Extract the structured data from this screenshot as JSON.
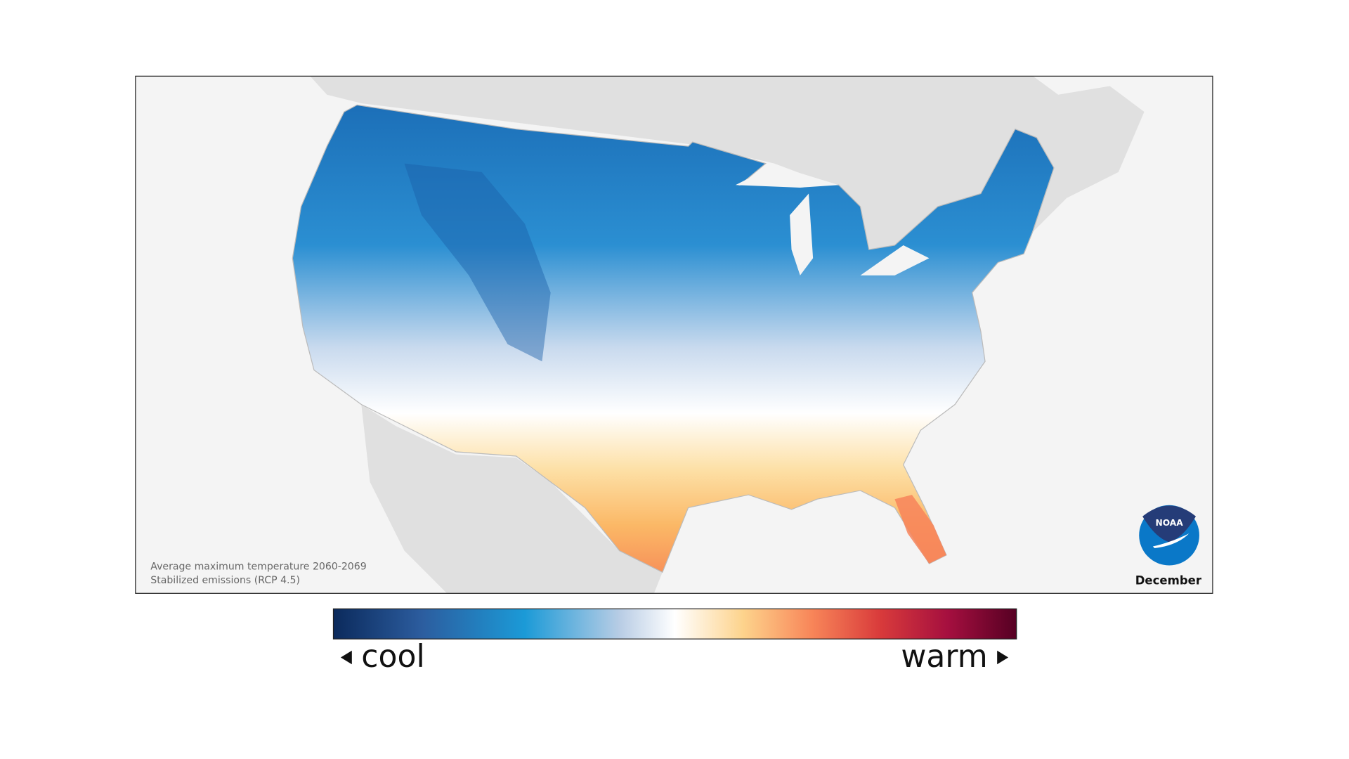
{
  "map": {
    "caption_line1": "Average maximum temperature 2060-2069",
    "caption_line2": "Stabilized emissions (RCP 4.5)",
    "month": "December",
    "logo_text": "NOAA",
    "colors": {
      "background": "#f4f4f4",
      "neighbor_land": "#e0e0e0",
      "frame": "#222222"
    }
  },
  "legend": {
    "cool_label": "cool",
    "warm_label": "warm",
    "colors": [
      "#0b2a5c",
      "#2c5d9f",
      "#1b9ad7",
      "#b9cde5",
      "#ffffff",
      "#fdd38c",
      "#f88659",
      "#d93b3b",
      "#a50f3f",
      "#560023"
    ]
  }
}
